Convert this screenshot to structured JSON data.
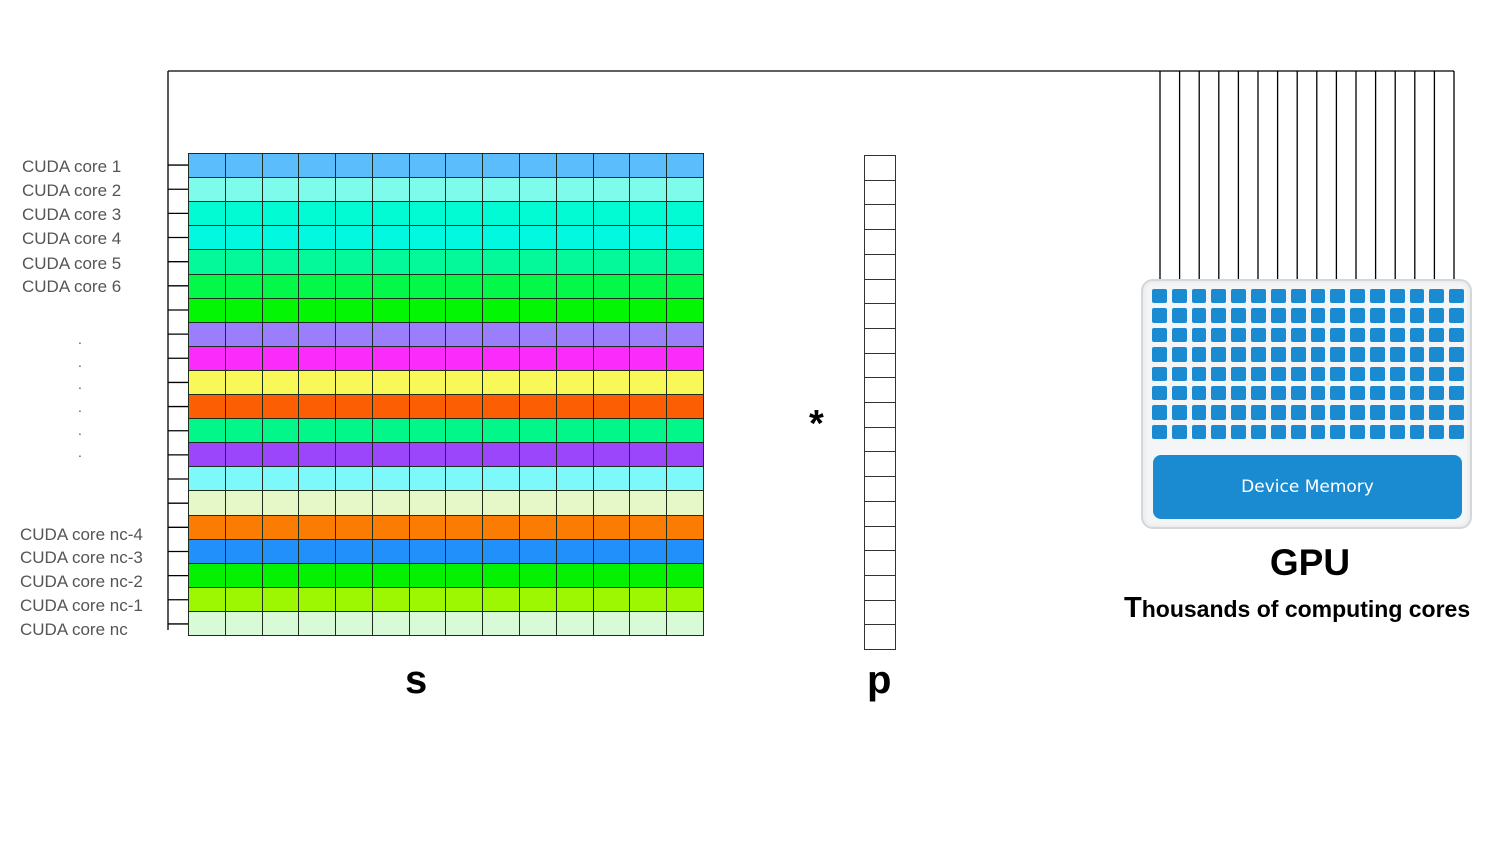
{
  "core_labels_top": [
    "CUDA core 1",
    "CUDA core 2",
    "CUDA core 3",
    "CUDA core 4",
    "CUDA core 5",
    "CUDA core 6"
  ],
  "core_labels_bottom": [
    "CUDA core nc-4",
    "CUDA core nc-3",
    "CUDA core nc-2",
    "CUDA core nc-1",
    "CUDA core nc"
  ],
  "ellipsis_dots": [
    ".",
    ".",
    ".",
    ".",
    ".",
    "."
  ],
  "matrix_s": {
    "label": "s",
    "columns": 14,
    "row_colors": [
      "#5bbdfc",
      "#7dfbeb",
      "#02fbd3",
      "#03f8e0",
      "#03f99a",
      "#03f84a",
      "#03f603",
      "#9b7efb",
      "#fb2bfb",
      "#f8f959",
      "#fb5e03",
      "#03f788",
      "#9b46fb",
      "#7ef9fb",
      "#e7f8c8",
      "#fb7c03",
      "#2290fb",
      "#03f202",
      "#9df702",
      "#d8fad7"
    ]
  },
  "operator": "*",
  "vector_p": {
    "label": "p",
    "cells": 20
  },
  "gpu": {
    "title": "GPU",
    "subtitle_first_letter": "T",
    "subtitle_rest": "housands of computing cores",
    "memory_label": "Device Memory",
    "core_grid": {
      "columns": 16,
      "rows": 8
    },
    "core_color": "#1a8bd0"
  },
  "wire_count": 16
}
